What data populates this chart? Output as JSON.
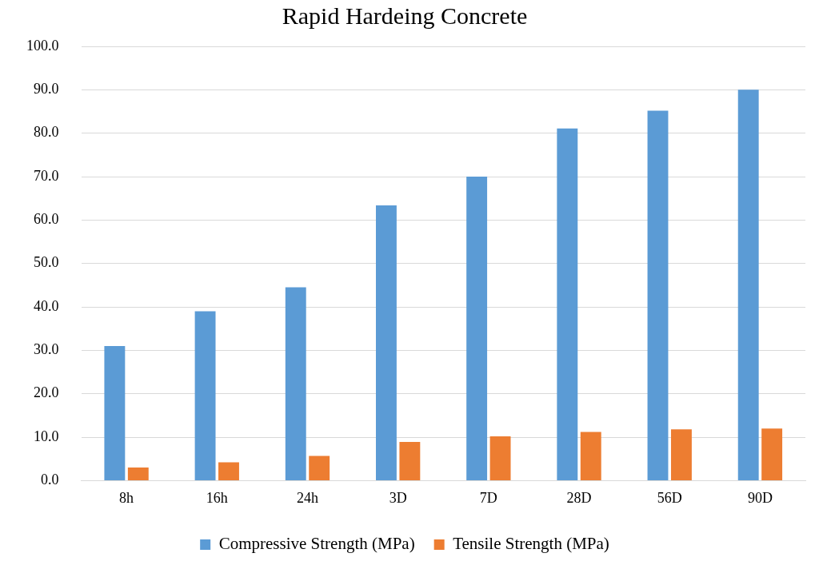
{
  "chart_data": {
    "type": "bar",
    "title": "Rapid Hardeing Concrete",
    "categories": [
      "8h",
      "16h",
      "24h",
      "3D",
      "7D",
      "28D",
      "56D",
      "90D"
    ],
    "series": [
      {
        "name": "Compressive Strength (MPa)",
        "color": "#5b9bd5",
        "values": [
          31.0,
          39.0,
          44.5,
          63.4,
          70.0,
          81.1,
          85.2,
          90.0
        ]
      },
      {
        "name": "Tensile Strength (MPa)",
        "color": "#ed7d31",
        "values": [
          3.0,
          4.2,
          5.7,
          8.9,
          10.2,
          11.2,
          11.8,
          12.0
        ]
      }
    ],
    "ylim": [
      0,
      100
    ],
    "yticks": [
      {
        "value": 0,
        "label": "0.0"
      },
      {
        "value": 10,
        "label": "10.0"
      },
      {
        "value": 20,
        "label": "20.0"
      },
      {
        "value": 30,
        "label": "30.0"
      },
      {
        "value": 40,
        "label": "40.0"
      },
      {
        "value": 50,
        "label": "50.0"
      },
      {
        "value": 60,
        "label": "60.0"
      },
      {
        "value": 70,
        "label": "70.0"
      },
      {
        "value": 80,
        "label": "80.0"
      },
      {
        "value": 90,
        "label": "90.0"
      },
      {
        "value": 100,
        "label": "100.0"
      }
    ],
    "grid": "y",
    "legend": "bottom"
  }
}
